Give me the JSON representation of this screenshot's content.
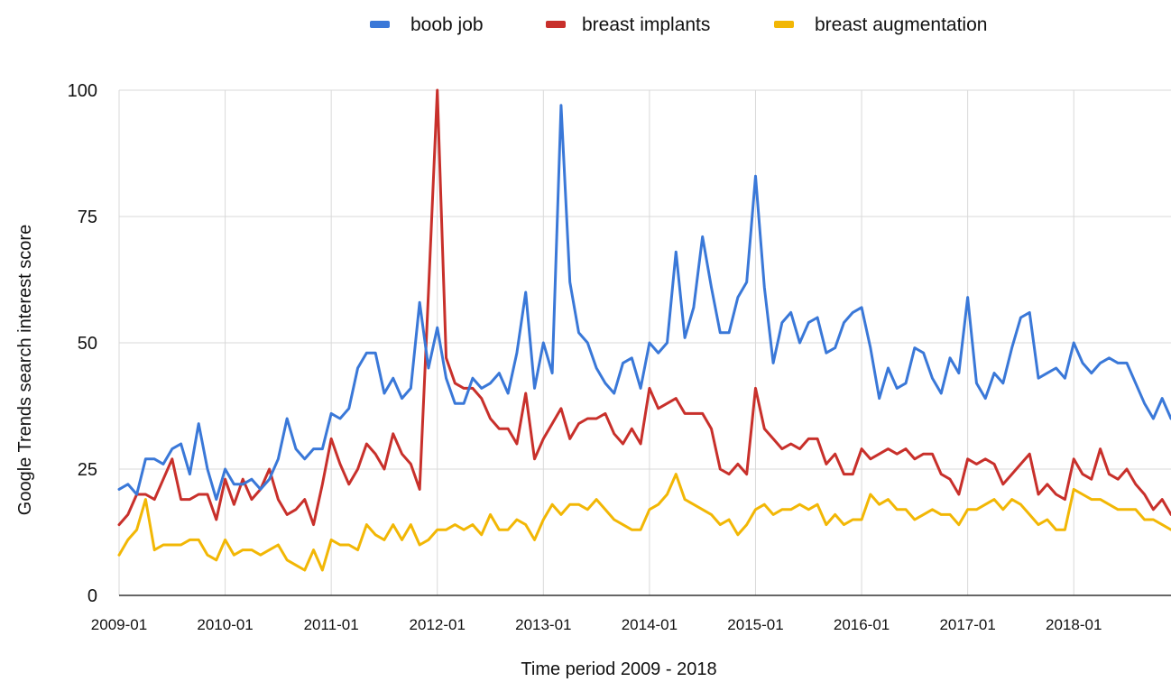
{
  "chart_data": {
    "type": "line",
    "xlabel": "Time period 2009 - 2018",
    "ylabel": "Google Trends search interest score",
    "ylim": [
      0,
      100
    ],
    "y_ticks": [
      0,
      25,
      50,
      75,
      100
    ],
    "x_ticks": [
      "2009-01",
      "2010-01",
      "2011-01",
      "2012-01",
      "2013-01",
      "2014-01",
      "2015-01",
      "2016-01",
      "2017-01",
      "2018-01"
    ],
    "x_start": "2009-01",
    "x_end": "2018-12",
    "grid": true,
    "legend_position": "top",
    "series": [
      {
        "name": "boob job",
        "color": "#3a78d8",
        "values": [
          21,
          22,
          20,
          27,
          27,
          26,
          29,
          30,
          24,
          34,
          25,
          19,
          25,
          22,
          22,
          23,
          21,
          23,
          27,
          35,
          29,
          27,
          29,
          29,
          36,
          35,
          37,
          45,
          48,
          48,
          40,
          43,
          39,
          41,
          58,
          45,
          53,
          43,
          38,
          38,
          43,
          41,
          42,
          44,
          40,
          48,
          60,
          41,
          50,
          44,
          97,
          62,
          52,
          50,
          45,
          42,
          40,
          46,
          47,
          41,
          50,
          48,
          50,
          68,
          51,
          57,
          71,
          61,
          52,
          52,
          59,
          62,
          83,
          61,
          46,
          54,
          56,
          50,
          54,
          55,
          48,
          49,
          54,
          56,
          57,
          49,
          39,
          45,
          41,
          42,
          49,
          48,
          43,
          40,
          47,
          44,
          59,
          42,
          39,
          44,
          42,
          49,
          55,
          56,
          43,
          44,
          45,
          43,
          50,
          46,
          44,
          46,
          47,
          46,
          46,
          42,
          38,
          35,
          39,
          35
        ]
      },
      {
        "name": "breast implants",
        "color": "#c8302b",
        "values": [
          14,
          16,
          20,
          20,
          19,
          23,
          27,
          19,
          19,
          20,
          20,
          15,
          23,
          18,
          23,
          19,
          21,
          25,
          19,
          16,
          17,
          19,
          14,
          22,
          31,
          26,
          22,
          25,
          30,
          28,
          25,
          32,
          28,
          26,
          21,
          60,
          100,
          47,
          42,
          41,
          41,
          39,
          35,
          33,
          33,
          30,
          40,
          27,
          31,
          34,
          37,
          31,
          34,
          35,
          35,
          36,
          32,
          30,
          33,
          30,
          41,
          37,
          38,
          39,
          36,
          36,
          36,
          33,
          25,
          24,
          26,
          24,
          41,
          33,
          31,
          29,
          30,
          29,
          31,
          31,
          26,
          28,
          24,
          24,
          29,
          27,
          28,
          29,
          28,
          29,
          27,
          28,
          28,
          24,
          23,
          20,
          27,
          26,
          27,
          26,
          22,
          24,
          26,
          28,
          20,
          22,
          20,
          19,
          27,
          24,
          23,
          29,
          24,
          23,
          25,
          22,
          20,
          17,
          19,
          16
        ]
      },
      {
        "name": "breast augmentation",
        "color": "#f2b705",
        "values": [
          8,
          11,
          13,
          19,
          9,
          10,
          10,
          10,
          11,
          11,
          8,
          7,
          11,
          8,
          9,
          9,
          8,
          9,
          10,
          7,
          6,
          5,
          9,
          5,
          11,
          10,
          10,
          9,
          14,
          12,
          11,
          14,
          11,
          14,
          10,
          11,
          13,
          13,
          14,
          13,
          14,
          12,
          16,
          13,
          13,
          15,
          14,
          11,
          15,
          18,
          16,
          18,
          18,
          17,
          19,
          17,
          15,
          14,
          13,
          13,
          17,
          18,
          20,
          24,
          19,
          18,
          17,
          16,
          14,
          15,
          12,
          14,
          17,
          18,
          16,
          17,
          17,
          18,
          17,
          18,
          14,
          16,
          14,
          15,
          15,
          20,
          18,
          19,
          17,
          17,
          15,
          16,
          17,
          16,
          16,
          14,
          17,
          17,
          18,
          19,
          17,
          19,
          18,
          16,
          14,
          15,
          13,
          13,
          21,
          20,
          19,
          19,
          18,
          17,
          17,
          17,
          15,
          15,
          14,
          13
        ]
      }
    ]
  }
}
